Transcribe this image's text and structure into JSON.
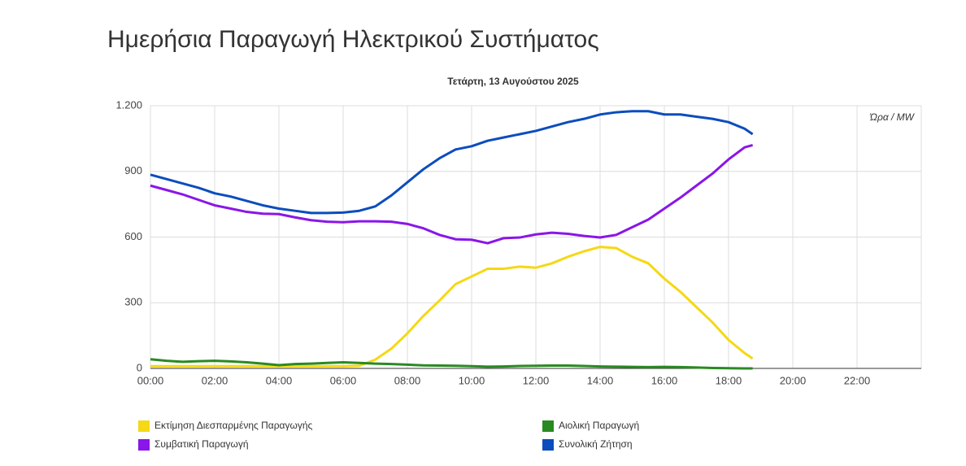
{
  "chart_data": {
    "type": "line",
    "title": "Ημερήσια Παραγωγή Ηλεκτρικού Συστήματος",
    "subtitle": "Τετάρτη, 13 Αυγούστου 2025",
    "annotation": "Ώρα / MW",
    "x": [
      0,
      0.5,
      1,
      1.5,
      2,
      2.5,
      3,
      3.5,
      4,
      4.5,
      5,
      5.5,
      6,
      6.5,
      7,
      7.5,
      8,
      8.5,
      9,
      9.5,
      10,
      10.5,
      11,
      11.5,
      12,
      12.5,
      13,
      13.5,
      14,
      14.5,
      15,
      15.5,
      16,
      16.5,
      17,
      17.5,
      18,
      18.5,
      18.75
    ],
    "xlim": [
      0,
      24
    ],
    "xticks": [
      {
        "value": 0,
        "label": "00:00"
      },
      {
        "value": 2,
        "label": "02:00"
      },
      {
        "value": 4,
        "label": "04:00"
      },
      {
        "value": 6,
        "label": "06:00"
      },
      {
        "value": 8,
        "label": "08:00"
      },
      {
        "value": 10,
        "label": "10:00"
      },
      {
        "value": 12,
        "label": "12:00"
      },
      {
        "value": 14,
        "label": "14:00"
      },
      {
        "value": 16,
        "label": "16:00"
      },
      {
        "value": 18,
        "label": "18:00"
      },
      {
        "value": 20,
        "label": "20:00"
      },
      {
        "value": 22,
        "label": "22:00"
      }
    ],
    "ylim": [
      0,
      1200
    ],
    "yticks": [
      0,
      300,
      600,
      900,
      {
        "value": 1200,
        "label": "1.200"
      }
    ],
    "grid": true,
    "series": [
      {
        "name": "Εκτίμηση Διεσπαρμένης Παραγωγής",
        "color": "#f5d816",
        "values": [
          10,
          10,
          10,
          10,
          10,
          10,
          10,
          10,
          10,
          10,
          10,
          10,
          10,
          12,
          40,
          90,
          160,
          240,
          310,
          385,
          420,
          455,
          455,
          465,
          460,
          480,
          510,
          535,
          555,
          550,
          510,
          480,
          410,
          350,
          280,
          210,
          130,
          70,
          45
        ]
      },
      {
        "name": "Αιολική Παραγωγή",
        "color": "#2a8a22",
        "values": [
          42,
          35,
          30,
          33,
          35,
          32,
          28,
          22,
          15,
          20,
          22,
          25,
          28,
          25,
          22,
          20,
          17,
          14,
          13,
          12,
          10,
          8,
          9,
          11,
          12,
          13,
          13,
          11,
          9,
          8,
          7,
          6,
          7,
          6,
          4,
          2,
          1,
          0,
          0
        ]
      },
      {
        "name": "Συμβατική Παραγωγή",
        "color": "#8a16e8",
        "values": [
          835,
          815,
          795,
          770,
          745,
          730,
          715,
          707,
          705,
          690,
          677,
          670,
          668,
          672,
          672,
          670,
          660,
          640,
          610,
          590,
          588,
          572,
          595,
          598,
          612,
          620,
          615,
          605,
          598,
          610,
          645,
          680,
          730,
          780,
          835,
          890,
          955,
          1010,
          1020
        ]
      },
      {
        "name": "Συνολική Ζήτηση",
        "color": "#0b4dbd",
        "values": [
          885,
          865,
          845,
          825,
          800,
          785,
          765,
          745,
          730,
          720,
          710,
          710,
          712,
          720,
          740,
          790,
          850,
          910,
          960,
          1000,
          1015,
          1040,
          1055,
          1070,
          1085,
          1105,
          1125,
          1140,
          1160,
          1170,
          1175,
          1175,
          1160,
          1160,
          1150,
          1140,
          1125,
          1095,
          1070
        ]
      }
    ]
  }
}
